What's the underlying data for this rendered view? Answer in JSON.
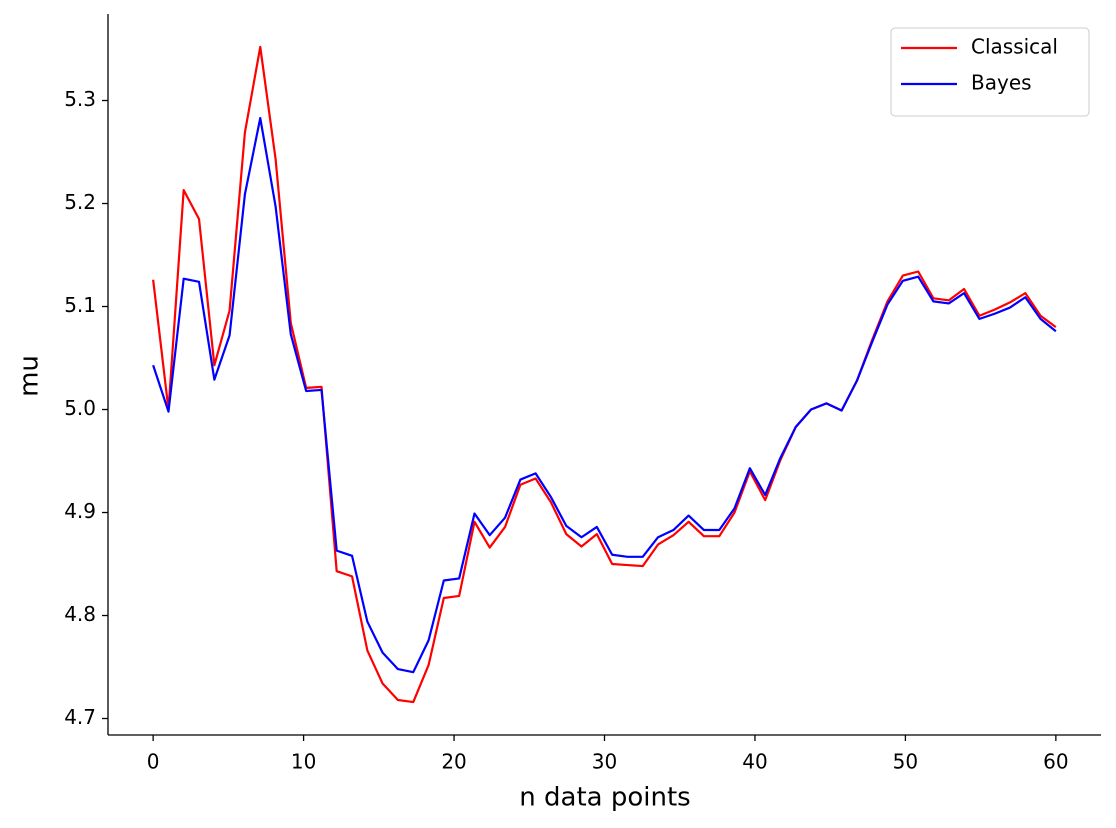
{
  "chart_data": {
    "type": "line",
    "xlabel": "n data points",
    "ylabel": "mu",
    "x": [
      0,
      1.02,
      2.03,
      3.05,
      4.07,
      5.08,
      6.1,
      7.12,
      8.14,
      9.15,
      10.17,
      11.19,
      12.2,
      13.22,
      14.24,
      15.25,
      16.27,
      17.29,
      18.31,
      19.32,
      20.34,
      21.36,
      22.37,
      23.39,
      24.41,
      25.42,
      26.44,
      27.46,
      28.47,
      29.49,
      30.51,
      31.53,
      32.54,
      33.56,
      34.58,
      35.59,
      36.61,
      37.63,
      38.64,
      39.66,
      40.68,
      41.69,
      42.71,
      43.73,
      44.75,
      45.76,
      46.78,
      47.8,
      48.81,
      49.83,
      50.85,
      51.86,
      52.88,
      53.9,
      54.92,
      55.93,
      56.95,
      57.97,
      58.98,
      60
    ],
    "series": [
      {
        "name": "Classical",
        "color": "#ff0000",
        "values": [
          5.126,
          5.0,
          5.213,
          5.185,
          5.043,
          5.096,
          5.269,
          5.352,
          5.243,
          5.084,
          5.021,
          5.022,
          4.843,
          4.838,
          4.766,
          4.734,
          4.718,
          4.716,
          4.752,
          4.817,
          4.819,
          4.891,
          4.866,
          4.886,
          4.927,
          4.933,
          4.91,
          4.879,
          4.867,
          4.879,
          4.85,
          4.849,
          4.848,
          4.869,
          4.878,
          4.891,
          4.877,
          4.877,
          4.9,
          4.94,
          4.912,
          4.951,
          4.983,
          5.0,
          5.006,
          4.999,
          5.028,
          5.068,
          5.105,
          5.13,
          5.134,
          5.108,
          5.106,
          5.117,
          5.091,
          5.097,
          5.104,
          5.113,
          5.091,
          5.08
        ]
      },
      {
        "name": "Bayes",
        "color": "#0000ff",
        "values": [
          5.043,
          4.998,
          5.127,
          5.124,
          5.029,
          5.072,
          5.209,
          5.283,
          5.197,
          5.073,
          5.018,
          5.019,
          4.863,
          4.858,
          4.794,
          4.764,
          4.748,
          4.745,
          4.776,
          4.834,
          4.836,
          4.899,
          4.878,
          4.895,
          4.932,
          4.938,
          4.915,
          4.887,
          4.876,
          4.886,
          4.859,
          4.857,
          4.857,
          4.876,
          4.883,
          4.897,
          4.883,
          4.883,
          4.904,
          4.943,
          4.917,
          4.953,
          4.983,
          5.0,
          5.006,
          4.999,
          5.028,
          5.066,
          5.102,
          5.125,
          5.129,
          5.105,
          5.103,
          5.113,
          5.088,
          5.093,
          5.099,
          5.109,
          5.088,
          5.076
        ]
      }
    ],
    "xlim": [
      -3,
      63
    ],
    "xticks": [
      0,
      10,
      20,
      30,
      40,
      50,
      60
    ],
    "ylim": [
      4.684,
      5.384
    ],
    "yticks": [
      4.7,
      4.8,
      4.9,
      {
        "value": 5.0,
        "label": "5.0"
      },
      5.1,
      5.2,
      5.3
    ],
    "legend": "upper right",
    "grid": false
  }
}
